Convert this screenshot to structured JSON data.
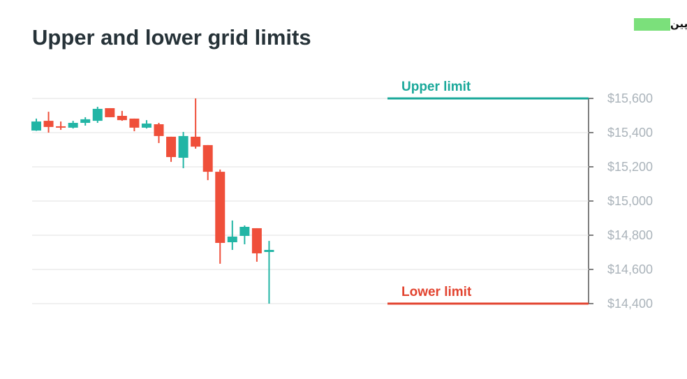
{
  "chart_data": {
    "type": "candlestick",
    "title": "Upper and lower grid limits",
    "watermark": "آکادمی بیت پین",
    "series": [
      {
        "up_color": "#22b5a5",
        "down_color": "#ef4f3a",
        "open": [
          15412,
          15469,
          15437,
          15429,
          15457,
          15469,
          15543,
          15498,
          15482,
          15429,
          15449,
          15376,
          15253,
          15376,
          15327,
          15171,
          14759,
          14796,
          14841,
          14702
        ],
        "high": [
          15482,
          15522,
          15465,
          15469,
          15490,
          15551,
          15543,
          15527,
          15482,
          15473,
          15457,
          15376,
          15404,
          15600,
          15327,
          15184,
          14886,
          14857,
          14841,
          14767
        ],
        "low": [
          15410,
          15400,
          15416,
          15424,
          15441,
          15457,
          15490,
          15469,
          15408,
          15424,
          15339,
          15229,
          15192,
          15306,
          15122,
          14633,
          14714,
          14747,
          14645,
          14400
        ],
        "close": [
          15465,
          15433,
          15429,
          15457,
          15478,
          15539,
          15490,
          15473,
          15429,
          15453,
          15380,
          15257,
          15380,
          15318,
          15171,
          14755,
          14792,
          14849,
          14694,
          14714
        ]
      }
    ],
    "ylim": [
      14400,
      15600
    ],
    "yticks": [
      {
        "value": 14400,
        "label": "$14,400"
      },
      {
        "value": 14600,
        "label": "$14,600"
      },
      {
        "value": 14800,
        "label": "$14,800"
      },
      {
        "value": 15000,
        "label": "$15,000"
      },
      {
        "value": 15200,
        "label": "$15,200"
      },
      {
        "value": 15400,
        "label": "$15,400"
      },
      {
        "value": 15600,
        "label": "$15,600"
      }
    ],
    "grid": true,
    "limits": [
      {
        "label": "Upper limit",
        "value": 15600,
        "color": "#1aa89a"
      },
      {
        "label": "Lower limit",
        "value": 14400,
        "color": "#e2432f"
      }
    ]
  }
}
